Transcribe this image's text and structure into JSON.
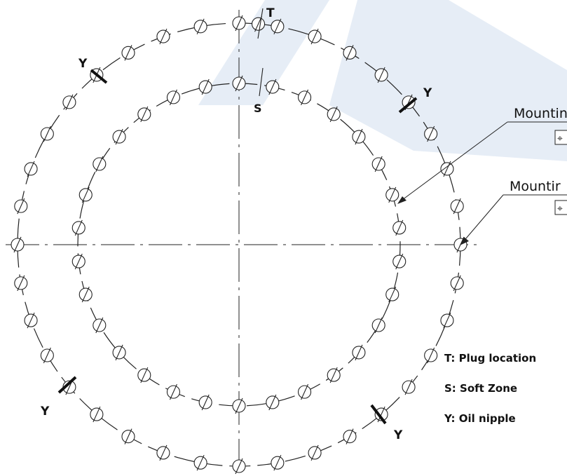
{
  "colors": {
    "watermark": "#2e6db4",
    "line": "#222222",
    "plug_fill": "#2b2b2b"
  },
  "markers": {
    "plug": "T",
    "soft_zone": "S",
    "oil_nipple": "Y"
  },
  "callouts": [
    {
      "text": "Mountin",
      "icon": "position-tolerance-icon",
      "symbol": "⌖"
    },
    {
      "text": "Mountir",
      "icon": "position-tolerance-icon",
      "symbol": "⌖"
    }
  ],
  "legend": [
    {
      "text": "T: Plug location"
    },
    {
      "text": "S: Soft Zone"
    },
    {
      "text": "Y: Oil nipple"
    }
  ]
}
